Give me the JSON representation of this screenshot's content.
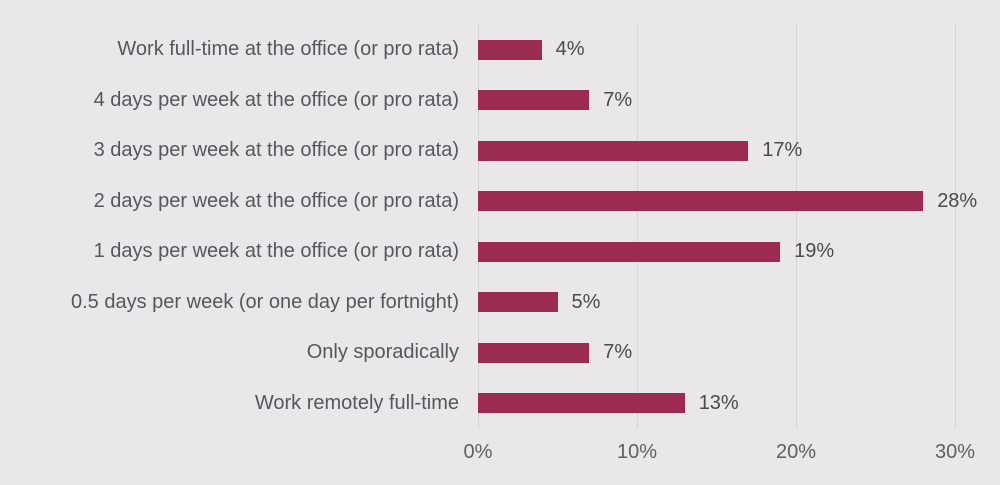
{
  "chart_data": {
    "type": "bar",
    "orientation": "horizontal",
    "title": "",
    "xlabel": "",
    "ylabel": "",
    "legend": "none",
    "grid": "vertical-gridlines",
    "categories": [
      "Work full-time at the office (or pro rata)",
      "4 days per week at the office (or pro rata)",
      "3 days per week at the office (or pro rata)",
      "2 days per week at the office (or pro rata)",
      "1 days per week at the office (or pro rata)",
      "0.5 days per week (or one day per fortnight)",
      "Only sporadically",
      "Work remotely full-time"
    ],
    "values": [
      4,
      7,
      17,
      28,
      19,
      5,
      7,
      13
    ],
    "data_labels": [
      "4%",
      "7%",
      "17%",
      "28%",
      "19%",
      "5%",
      "7%",
      "13%"
    ],
    "x_axis": {
      "tick_values": [
        0,
        10,
        20,
        30
      ],
      "tick_labels": [
        "0%",
        "10%",
        "20%",
        "30%"
      ],
      "range": [
        0,
        32
      ]
    },
    "colors": {
      "bar": "#9C2B52",
      "background": "#E9E7E9",
      "gridline": "#D7D4D7",
      "category_text": "#58565A",
      "value_text": "#4B4B4B",
      "tick_text": "#606060"
    }
  }
}
